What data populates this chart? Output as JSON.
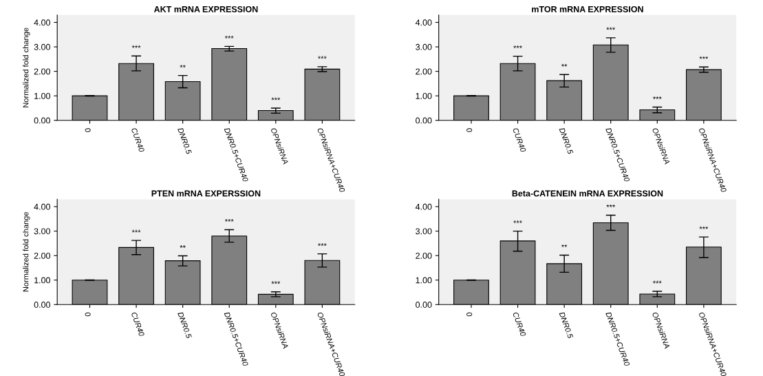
{
  "chart_data": [
    {
      "type": "bar",
      "title": "AKT mRNA EXPRESSION",
      "ylabel": "Normalized fold change",
      "categories": [
        "0",
        "CUR40",
        "DNR0.5",
        "DNR0.5+CUR40",
        "OPNsiRNA",
        "OPNsiRNA+CUR40"
      ],
      "values": [
        1.0,
        2.32,
        1.58,
        2.93,
        0.4,
        2.09
      ],
      "errors": [
        [
          0.99,
          1.01
        ],
        [
          2.02,
          2.63
        ],
        [
          1.33,
          1.83
        ],
        [
          2.83,
          3.02
        ],
        [
          0.29,
          0.5
        ],
        [
          1.99,
          2.19
        ]
      ],
      "value_labels": [
        null,
        "***",
        "**",
        "***",
        "***",
        "***"
      ],
      "color": "#808080",
      "ylim": [
        0,
        4.3
      ],
      "yticks": [
        {
          "value": 0,
          "label": "0.00"
        },
        {
          "value": 1,
          "label": "1.00"
        },
        {
          "value": 2,
          "label": "2.00"
        },
        {
          "value": 3,
          "label": "3.00"
        },
        {
          "value": 4,
          "label": "4.00"
        }
      ],
      "grid": false
    },
    {
      "type": "bar",
      "title": "mTOR mRNA EXPRESSION",
      "categories": [
        "0",
        "CUR40",
        "DNR0.5",
        "DNR0.5+CUR40",
        "OPNsiRNA",
        "OPNsiRNA+CUR40"
      ],
      "values": [
        1.0,
        2.32,
        1.62,
        3.08,
        0.43,
        2.07
      ],
      "errors": [
        [
          0.99,
          1.01
        ],
        [
          2.02,
          2.62
        ],
        [
          1.36,
          1.87
        ],
        [
          2.78,
          3.37
        ],
        [
          0.31,
          0.54
        ],
        [
          1.96,
          2.18
        ]
      ],
      "value_labels": [
        null,
        "***",
        "**",
        "***",
        "***",
        "***"
      ],
      "color": "#808080",
      "ylim": [
        0,
        4.3
      ],
      "yticks": [
        {
          "value": 0,
          "label": "0.00"
        },
        {
          "value": 1,
          "label": "1.00"
        },
        {
          "value": 2,
          "label": "2.00"
        },
        {
          "value": 3,
          "label": "3.00"
        },
        {
          "value": 4,
          "label": "4.00"
        }
      ],
      "grid": false
    },
    {
      "type": "bar",
      "title": "PTEN mRNA EXPERSSION",
      "ylabel": "Normalized fold change",
      "categories": [
        "0",
        "CUR40",
        "DNR0.5",
        "DNR0.5+CUR40",
        "OPNsiRNA",
        "OPNsiRNA+CUR40"
      ],
      "values": [
        1.0,
        2.33,
        1.79,
        2.8,
        0.42,
        1.8
      ],
      "errors": [
        [
          0.99,
          1.01
        ],
        [
          2.04,
          2.62
        ],
        [
          1.58,
          1.99
        ],
        [
          2.55,
          3.06
        ],
        [
          0.32,
          0.52
        ],
        [
          1.53,
          2.07
        ]
      ],
      "value_labels": [
        null,
        "***",
        "**",
        "***",
        "***",
        "***"
      ],
      "color": "#808080",
      "ylim": [
        0,
        4.3
      ],
      "yticks": [
        {
          "value": 0,
          "label": "0.00"
        },
        {
          "value": 1,
          "label": "1.00"
        },
        {
          "value": 2,
          "label": "2.00"
        },
        {
          "value": 3,
          "label": "3.00"
        },
        {
          "value": 4,
          "label": "4.00"
        }
      ],
      "grid": false
    },
    {
      "type": "bar",
      "title": "Beta-CATENEIN mRNA EXPRESSION",
      "categories": [
        "0",
        "CUR40",
        "DNR0.5",
        "DNR0.5+CUR40",
        "OPNsiRNA",
        "OPNsiRNA+CUR40"
      ],
      "values": [
        1.0,
        2.6,
        1.67,
        3.34,
        0.43,
        2.35
      ],
      "errors": [
        [
          0.99,
          1.01
        ],
        [
          2.18,
          3.0
        ],
        [
          1.32,
          2.02
        ],
        [
          3.03,
          3.65
        ],
        [
          0.32,
          0.54
        ],
        [
          1.92,
          2.76
        ]
      ],
      "value_labels": [
        null,
        "***",
        "**",
        "***",
        "***",
        "***"
      ],
      "color": "#808080",
      "ylim": [
        0,
        4.3
      ],
      "yticks": [
        {
          "value": 0,
          "label": "0.00"
        },
        {
          "value": 1,
          "label": "1.00"
        },
        {
          "value": 2,
          "label": "2.00"
        },
        {
          "value": 3,
          "label": "3.00"
        },
        {
          "value": 4,
          "label": "4.00"
        }
      ],
      "grid": false
    }
  ]
}
